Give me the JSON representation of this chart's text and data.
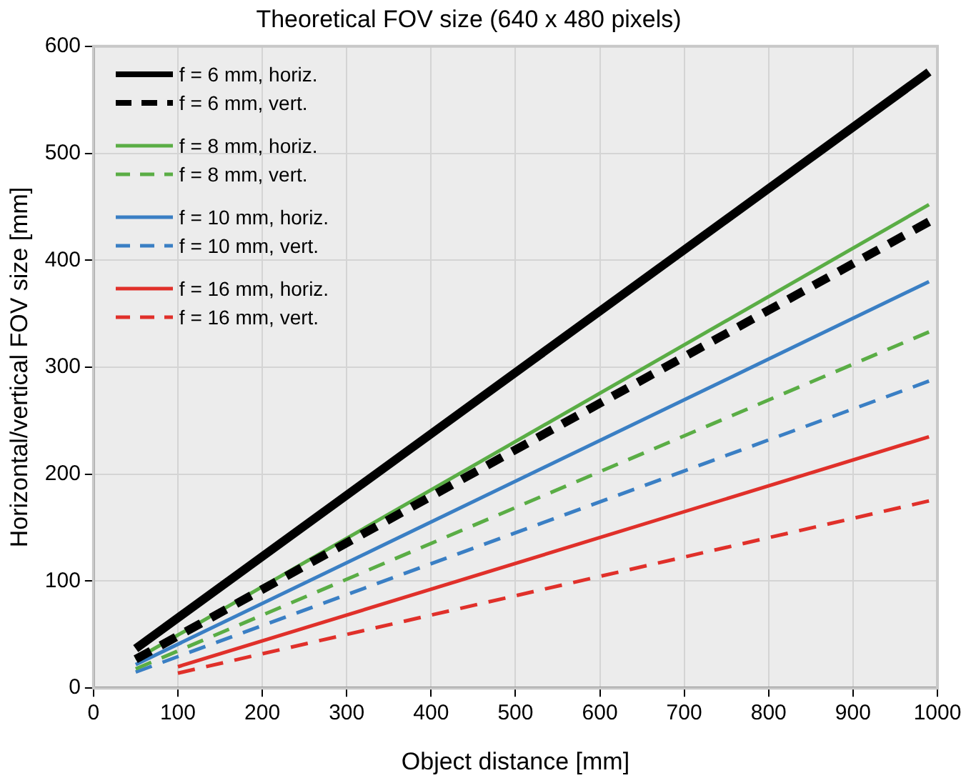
{
  "chart_data": {
    "type": "line",
    "title": "Theoretical FOV size (640 x 480 pixels)",
    "xlabel": "Object distance [mm]",
    "ylabel": "Horizontal/vertical FOV size [mm]",
    "xlim": [
      0,
      1000
    ],
    "xticks": [
      0,
      100,
      200,
      300,
      400,
      500,
      600,
      700,
      800,
      900,
      1000
    ],
    "ylim": [
      0,
      600
    ],
    "yticks": [
      0,
      100,
      200,
      300,
      400,
      500,
      600
    ],
    "grid": true,
    "legend": "top left",
    "marker": "none",
    "series": [
      {
        "name": "f = 6 mm, horiz.",
        "color": "#000000",
        "x": [
          50,
          990
        ],
        "values": [
          37,
          576
        ],
        "line_style": "solid"
      },
      {
        "name": "f = 6 mm, vert.",
        "color": "#000000",
        "x": [
          50,
          990
        ],
        "values": [
          27,
          436
        ],
        "line_style": "dashed"
      },
      {
        "name": "f = 8 mm, horiz.",
        "color": "#5aad45",
        "x": [
          50,
          990
        ],
        "values": [
          27,
          452
        ],
        "line_style": "solid"
      },
      {
        "name": "f = 8 mm, vert.",
        "color": "#5aad45",
        "x": [
          50,
          990
        ],
        "values": [
          18,
          333
        ],
        "line_style": "dashed"
      },
      {
        "name": "f = 10 mm, horiz.",
        "color": "#3a7fc4",
        "x": [
          50,
          990
        ],
        "values": [
          22,
          380
        ],
        "line_style": "solid"
      },
      {
        "name": "f = 10 mm, vert.",
        "color": "#3a7fc4",
        "x": [
          50,
          990
        ],
        "values": [
          15,
          287
        ],
        "line_style": "dashed"
      },
      {
        "name": "f = 16 mm, horiz.",
        "color": "#e0302a",
        "x": [
          100,
          990
        ],
        "values": [
          20,
          235
        ],
        "line_style": "solid"
      },
      {
        "name": "f = 16 mm, vert.",
        "color": "#e0302a",
        "x": [
          100,
          990
        ],
        "values": [
          14,
          175
        ],
        "line_style": "dashed"
      }
    ]
  }
}
